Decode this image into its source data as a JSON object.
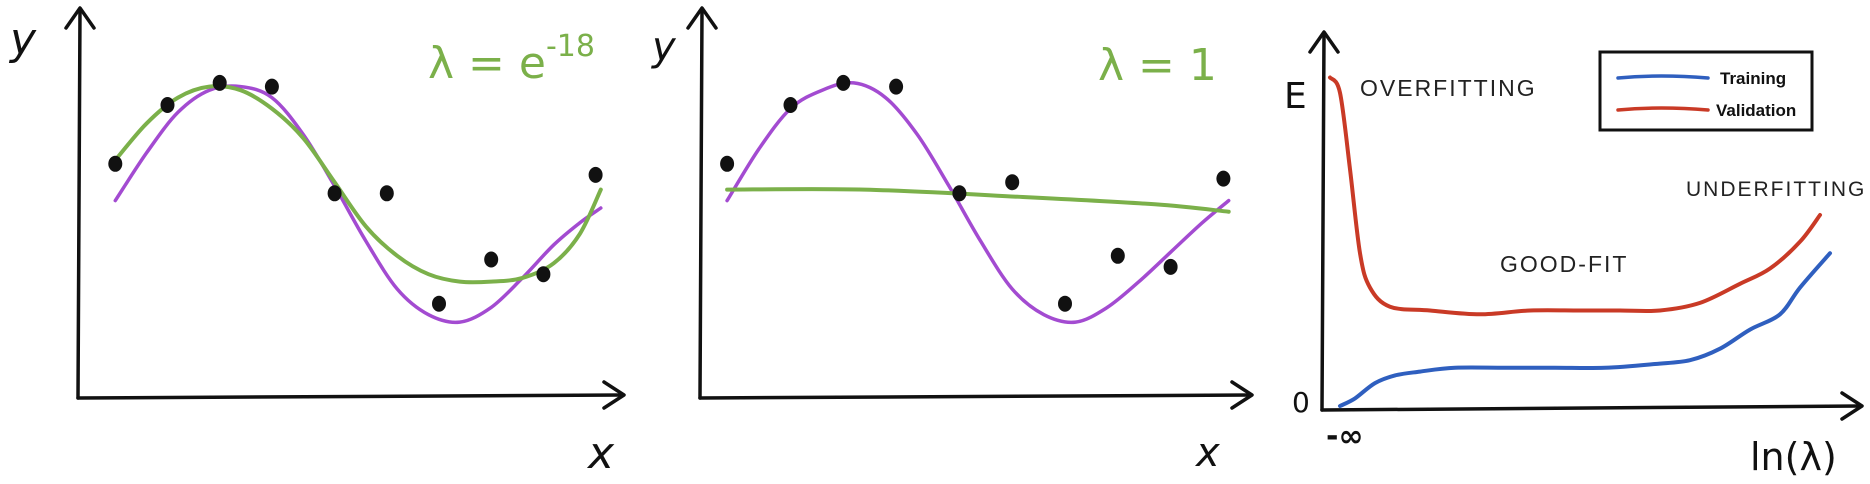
{
  "colors": {
    "axis": "#111111",
    "points": "#111111",
    "true_curve": "#a34bd1",
    "fit_curve": "#7bb04a",
    "training": "#2f5fbf",
    "validation": "#c93a26",
    "lambda_label": "#7bb04a"
  },
  "chart_data": [
    {
      "type": "scatter",
      "xlabel": "x",
      "ylabel": "y",
      "annotation": "λ = e",
      "annotation_exponent": "-18",
      "points": {
        "x": [
          0.06,
          0.16,
          0.26,
          0.36,
          0.48,
          0.58,
          0.68,
          0.78,
          0.88,
          0.98
        ],
        "y": [
          0.62,
          0.78,
          0.84,
          0.83,
          0.54,
          0.54,
          0.24,
          0.36,
          0.32,
          0.59
        ]
      },
      "series": [
        {
          "role": "true_curve",
          "x": [
            0.06,
            0.12,
            0.18,
            0.24,
            0.3,
            0.36,
            0.42,
            0.48,
            0.54,
            0.6,
            0.66,
            0.72,
            0.78,
            0.84,
            0.9,
            0.95,
            0.99
          ],
          "y": [
            0.52,
            0.65,
            0.76,
            0.82,
            0.83,
            0.8,
            0.7,
            0.56,
            0.41,
            0.28,
            0.21,
            0.19,
            0.23,
            0.31,
            0.4,
            0.46,
            0.5
          ]
        },
        {
          "role": "fit_curve",
          "x": [
            0.06,
            0.12,
            0.18,
            0.24,
            0.3,
            0.36,
            0.42,
            0.48,
            0.54,
            0.6,
            0.66,
            0.72,
            0.78,
            0.84,
            0.9,
            0.95,
            0.99
          ],
          "y": [
            0.63,
            0.73,
            0.8,
            0.83,
            0.82,
            0.77,
            0.69,
            0.57,
            0.45,
            0.37,
            0.32,
            0.3,
            0.3,
            0.31,
            0.35,
            0.43,
            0.55
          ]
        }
      ]
    },
    {
      "type": "scatter",
      "xlabel": "x",
      "ylabel": "y",
      "annotation": "λ = 1",
      "points": {
        "x": [
          0.04,
          0.16,
          0.26,
          0.36,
          0.48,
          0.58,
          0.68,
          0.78,
          0.88,
          0.98
        ],
        "y": [
          0.62,
          0.78,
          0.84,
          0.83,
          0.54,
          0.57,
          0.24,
          0.37,
          0.34,
          0.58
        ]
      },
      "series": [
        {
          "role": "true_curve",
          "x": [
            0.04,
            0.1,
            0.16,
            0.22,
            0.28,
            0.34,
            0.4,
            0.46,
            0.52,
            0.58,
            0.64,
            0.7,
            0.76,
            0.82,
            0.88,
            0.94,
            0.99
          ],
          "y": [
            0.52,
            0.66,
            0.77,
            0.82,
            0.84,
            0.8,
            0.7,
            0.56,
            0.41,
            0.28,
            0.21,
            0.19,
            0.23,
            0.3,
            0.38,
            0.46,
            0.52
          ]
        },
        {
          "role": "fit_curve",
          "x": [
            0.04,
            0.3,
            0.6,
            0.85,
            0.99
          ],
          "y": [
            0.55,
            0.55,
            0.53,
            0.51,
            0.49
          ]
        }
      ]
    },
    {
      "type": "line",
      "xlabel": "ln(λ)",
      "ylabel": "E",
      "x_start_label": "-∞",
      "y_zero_label": "0",
      "annotations": [
        "OVERFITTING",
        "GOOD-FIT",
        "UNDERFITTING"
      ],
      "legend_position": "top-right",
      "series": [
        {
          "name": "Training",
          "role": "training",
          "x": [
            0.02,
            0.05,
            0.09,
            0.13,
            0.18,
            0.25,
            0.35,
            0.45,
            0.55,
            0.65,
            0.72,
            0.78,
            0.84,
            0.9,
            0.94,
            1.0
          ],
          "y": [
            0.0,
            0.02,
            0.06,
            0.08,
            0.09,
            0.1,
            0.1,
            0.1,
            0.1,
            0.11,
            0.12,
            0.15,
            0.2,
            0.24,
            0.31,
            0.4
          ]
        },
        {
          "name": "Validation",
          "role": "validation",
          "x": [
            0.0,
            0.02,
            0.04,
            0.06,
            0.08,
            0.12,
            0.2,
            0.3,
            0.4,
            0.5,
            0.58,
            0.66,
            0.74,
            0.82,
            0.88,
            0.94,
            0.98
          ],
          "y": [
            0.86,
            0.82,
            0.62,
            0.4,
            0.31,
            0.26,
            0.25,
            0.24,
            0.25,
            0.25,
            0.25,
            0.25,
            0.27,
            0.32,
            0.36,
            0.43,
            0.5
          ]
        }
      ]
    }
  ]
}
